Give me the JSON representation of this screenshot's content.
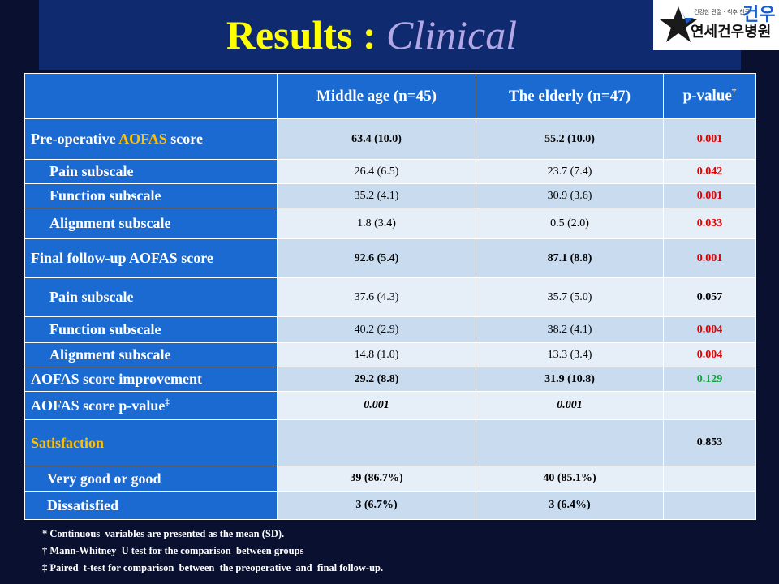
{
  "title": {
    "part1": "Results : ",
    "part2": "Clinical"
  },
  "logo": {
    "small_text": "건강한 관절 · 척추 친구",
    "hospital": "연세건우병원",
    "mark": "건우"
  },
  "table": {
    "headers": [
      "",
      "Middle age (n=45)",
      "The elderly (n=47)",
      "p-value"
    ],
    "header_pvalue_mark": "†",
    "rows": [
      {
        "label_pre": "Pre-operative ",
        "label_hl": "AOFAS",
        "label_post": " score",
        "middle": "63.4 (10.0)",
        "elderly": "55.2 (10.0)",
        "p": "0.001"
      },
      {
        "label": "Pain subscale",
        "middle": "26.4 (6.5)",
        "elderly": "23.7 (7.4)",
        "p": "0.042"
      },
      {
        "label": "Function subscale",
        "middle": "35.2 (4.1)",
        "elderly": "30.9 (3.6)",
        "p": "0.001"
      },
      {
        "label": "Alignment  subscale",
        "middle": "1.8 (3.4)",
        "elderly": "0.5 (2.0)",
        "p": "0.033"
      },
      {
        "label": "Final follow-up  AOFAS score",
        "middle": "92.6 (5.4)",
        "elderly": "87.1 (8.8)",
        "p": "0.001"
      },
      {
        "label": "Pain subscale",
        "middle": "37.6 (4.3)",
        "elderly": "35.7 (5.0)",
        "p": "0.057"
      },
      {
        "label": "Function subscale",
        "middle": "40.2 (2.9)",
        "elderly": "38.2 (4.1)",
        "p": "0.004"
      },
      {
        "label": "Alignment  subscale",
        "middle": "14.8 (1.0)",
        "elderly": "13.3 (3.4)",
        "p": "0.004"
      },
      {
        "label": "AOFAS score improvement",
        "middle": "29.2 (8.8)",
        "elderly": "31.9 (10.8)",
        "p": "0.129"
      },
      {
        "label": "AOFAS score p-value",
        "label_mark": "‡",
        "middle": "0.001",
        "elderly": "0.001",
        "p": ""
      },
      {
        "label": "Satisfaction",
        "middle": "",
        "elderly": "",
        "p": "0.853"
      },
      {
        "label": "Very  good or good",
        "middle": "39 (86.7%)",
        "elderly": "40 (85.1%)",
        "p": ""
      },
      {
        "label": "Dissatisfied",
        "middle": "3 (6.7%)",
        "elderly": "3 (6.4%)",
        "p": ""
      }
    ]
  },
  "notes": [
    "* Continuous  variables are presented as the mean (SD).",
    "† Mann-Whitney  U test for the comparison  between groups",
    "‡ Paired  t-test for comparison  between  the preoperative  and  final follow-up."
  ],
  "colors": {
    "background": "#0a1030",
    "header_blue": "#1b6ad2",
    "highlight_yellow": "#ffc000",
    "significant_red": "#e00000",
    "green_value": "#12a13a"
  }
}
